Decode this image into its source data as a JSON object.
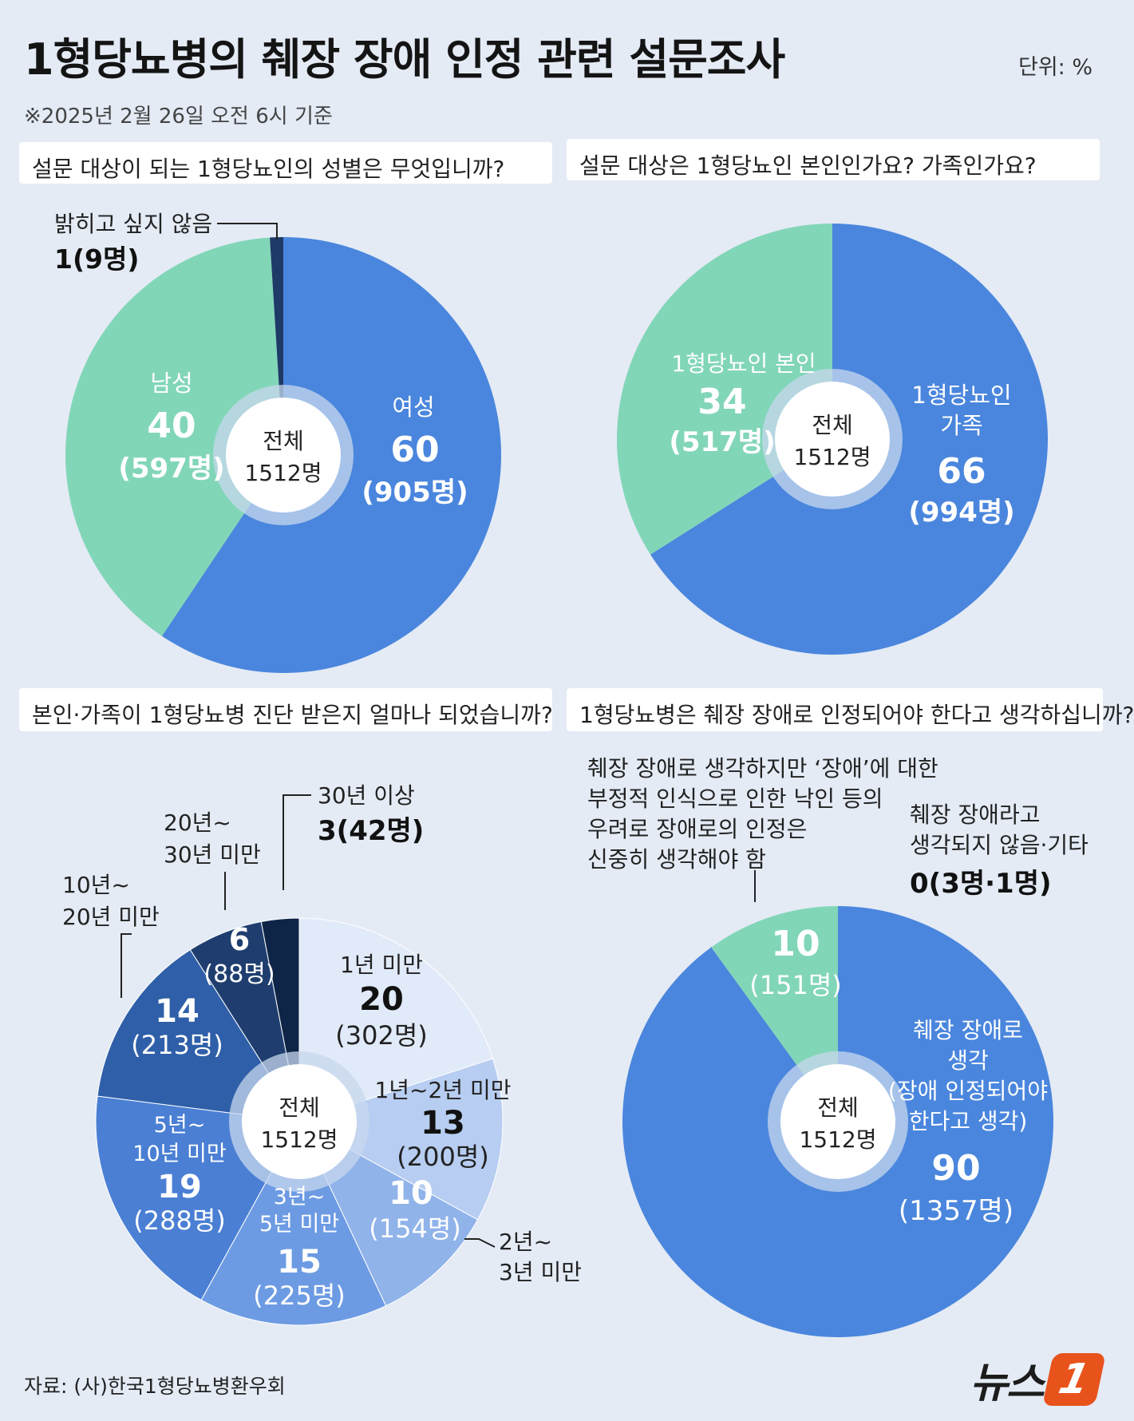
{
  "header": {
    "title": "1형당뇨병의 췌장 장애 인정 관련 설문조사",
    "unit": "단위: %",
    "basis": "※2025년 2월 26일 오전 6시 기준"
  },
  "footer": {
    "source": "자료: (사)한국1형당뇨병환우회",
    "logo_text": "뉴스",
    "logo_mark": "1"
  },
  "colors": {
    "blue": "#4a86dd",
    "mint": "#82d6b8",
    "navy": "#1e3a66",
    "center_halo": "#c7d7ee"
  },
  "chart_data": [
    {
      "type": "pie",
      "question": "설문 대상이 되는 1형당뇨인의 성별은 무엇입니까?",
      "center_label": [
        "전체",
        "1512명"
      ],
      "slices": [
        {
          "name": "여성",
          "value": 60,
          "count": "(905명)",
          "color": "#4a86dd"
        },
        {
          "name": "남성",
          "value": 40,
          "count": "(597명)",
          "color": "#82d6b8"
        },
        {
          "name": "밝히고 싶지 않음",
          "value": 1,
          "count": "(9명)",
          "value_label": "1(9명)",
          "color": "#1e3a66"
        }
      ]
    },
    {
      "type": "pie",
      "question": "설문 대상은 1형당뇨인 본인인가요? 가족인가요?",
      "center_label": [
        "전체",
        "1512명"
      ],
      "slices": [
        {
          "name": "1형당뇨인 가족",
          "name_lines": [
            "1형당뇨인",
            "가족"
          ],
          "value": 66,
          "count": "(994명)",
          "color": "#4a86dd"
        },
        {
          "name": "1형당뇨인 본인",
          "value": 34,
          "count": "(517명)",
          "color": "#82d6b8"
        }
      ]
    },
    {
      "type": "pie",
      "question": "본인·가족이 1형당뇨병 진단 받은지 얼마나 되었습니까?",
      "center_label": [
        "전체",
        "1512명"
      ],
      "slices": [
        {
          "name": "1년 미만",
          "value": 20,
          "count": "(302명)",
          "color": "#e1eaf8"
        },
        {
          "name": "1년~2년 미만",
          "value": 13,
          "count": "(200명)",
          "color": "#b7cdf1"
        },
        {
          "name": "2년~3년 미만",
          "name_lines": [
            "2년~",
            "3년 미만"
          ],
          "value": 10,
          "count": "(154명)",
          "color": "#90b3ea"
        },
        {
          "name": "3년~5년 미만",
          "name_lines": [
            "3년~",
            "5년 미만"
          ],
          "value": 15,
          "count": "(225명)",
          "color": "#6d9be3"
        },
        {
          "name": "5년~10년 미만",
          "name_lines": [
            "5년~",
            "10년 미만"
          ],
          "value": 19,
          "count": "(288명)",
          "color": "#4a7fd4"
        },
        {
          "name": "10년~20년 미만",
          "name_lines": [
            "10년~",
            "20년 미만"
          ],
          "value": 14,
          "count": "(213명)",
          "color": "#2f5fa8"
        },
        {
          "name": "20년~30년 미만",
          "name_lines": [
            "20년~",
            "30년 미만"
          ],
          "value": 6,
          "count": "(88명)",
          "color": "#1f3e6f"
        },
        {
          "name": "30년 이상",
          "value": 3,
          "count": "(42명)",
          "value_label": "3(42명)",
          "color": "#0f2547"
        }
      ]
    },
    {
      "type": "pie",
      "question": "1형당뇨병은 췌장 장애로 인정되어야 한다고 생각하십니까?",
      "center_label": [
        "전체",
        "1512명"
      ],
      "slices": [
        {
          "name": "췌장 장애로 생각 (장애 인정되어야 한다고 생각)",
          "name_lines": [
            "췌장 장애로",
            "생각",
            "(장애 인정되어야",
            "한다고 생각)"
          ],
          "value": 90,
          "count": "(1357명)",
          "color": "#4a86dd"
        },
        {
          "name": "췌장 장애로 생각하지만 '장애'에 대한 부정적 인식으로 인한 낙인 등의 우려로 장애로의 인정은 신중히 생각해야 함",
          "name_lines": [
            "췌장 장애로 생각하지만 ‘장애’에 대한",
            "부정적 인식으로 인한 낙인 등의",
            "우려로 장애로의 인정은",
            "신중히 생각해야 함"
          ],
          "value": 10,
          "count": "(151명)",
          "color": "#82d6b8"
        },
        {
          "name": "췌장 장애라고 생각되지 않음·기타",
          "name_lines": [
            "췌장 장애라고",
            "생각되지 않음·기타"
          ],
          "value": 0,
          "count": "(3명·1명)",
          "value_label": "0(3명·1명)",
          "color": "#2a5aa0"
        }
      ]
    }
  ]
}
